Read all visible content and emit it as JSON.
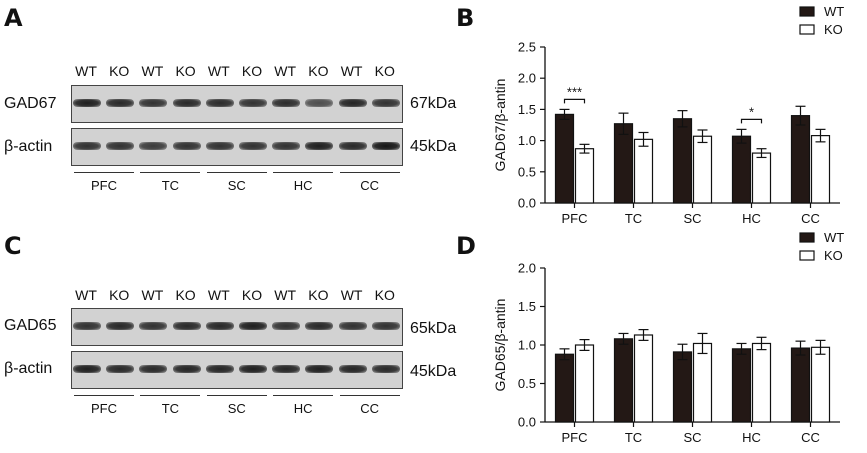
{
  "panels": {
    "a": "A",
    "b": "B",
    "c": "C",
    "d": "D"
  },
  "blot_lanes": [
    "WT",
    "KO",
    "WT",
    "KO",
    "WT",
    "KO",
    "WT",
    "KO",
    "WT",
    "KO"
  ],
  "blot_regions": [
    "PFC",
    "TC",
    "SC",
    "HC",
    "CC"
  ],
  "blot_top": {
    "row1": {
      "protein": "GAD67",
      "kda": "67kDa",
      "intensity": [
        0.95,
        0.9,
        0.85,
        0.9,
        0.88,
        0.85,
        0.88,
        0.7,
        0.92,
        0.85
      ]
    },
    "row2": {
      "protein": "β-actin",
      "kda": "45kDa",
      "intensity": [
        0.85,
        0.85,
        0.8,
        0.85,
        0.85,
        0.85,
        0.85,
        0.95,
        0.9,
        1.0
      ]
    }
  },
  "blot_bottom": {
    "row1": {
      "protein": "GAD65",
      "kda": "65kDa",
      "intensity": [
        0.85,
        0.9,
        0.85,
        0.9,
        0.9,
        0.95,
        0.85,
        0.9,
        0.85,
        0.85
      ]
    },
    "row2": {
      "protein": "β-actin",
      "kda": "45kDa",
      "intensity": [
        0.95,
        0.9,
        0.9,
        0.92,
        0.92,
        0.95,
        0.92,
        0.95,
        0.92,
        0.9
      ]
    }
  },
  "colors": {
    "wt": "#231815",
    "ko": "#ffffff",
    "blot_bg": "#d2d2d2"
  },
  "chart_data": [
    {
      "type": "bar",
      "title": "",
      "ylabel": "GAD67/β-antin",
      "categories": [
        "PFC",
        "TC",
        "SC",
        "HC",
        "CC"
      ],
      "ylim": [
        0,
        2.5
      ],
      "yticks": [
        "0.0",
        "0.5",
        "1.0",
        "1.5",
        "2.0",
        "2.5"
      ],
      "legend": "top-right",
      "series": [
        {
          "name": "WT",
          "values": [
            1.42,
            1.27,
            1.35,
            1.07,
            1.4
          ],
          "errors": [
            0.08,
            0.17,
            0.13,
            0.11,
            0.15
          ]
        },
        {
          "name": "KO",
          "values": [
            0.87,
            1.02,
            1.07,
            0.8,
            1.08
          ],
          "errors": [
            0.07,
            0.11,
            0.1,
            0.07,
            0.1
          ]
        }
      ],
      "annotations": [
        {
          "category": "PFC",
          "text": "***"
        },
        {
          "category": "HC",
          "text": "*"
        }
      ]
    },
    {
      "type": "bar",
      "title": "",
      "ylabel": "GAD65/β-antin",
      "categories": [
        "PFC",
        "TC",
        "SC",
        "HC",
        "CC"
      ],
      "ylim": [
        0,
        2.0
      ],
      "yticks": [
        "0.0",
        "0.5",
        "1.0",
        "1.5",
        "2.0"
      ],
      "legend": "top-right",
      "series": [
        {
          "name": "WT",
          "values": [
            0.88,
            1.08,
            0.91,
            0.95,
            0.96
          ],
          "errors": [
            0.07,
            0.07,
            0.1,
            0.07,
            0.09
          ]
        },
        {
          "name": "KO",
          "values": [
            1.0,
            1.13,
            1.02,
            1.02,
            0.97
          ],
          "errors": [
            0.07,
            0.07,
            0.13,
            0.08,
            0.09
          ]
        }
      ],
      "annotations": []
    }
  ]
}
